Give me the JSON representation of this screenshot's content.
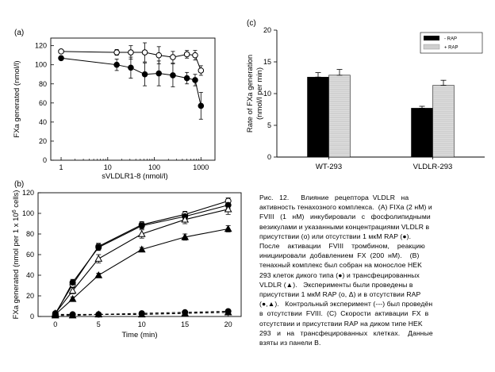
{
  "chart_data": [
    {
      "panel": "(a)",
      "type": "scatter",
      "xlabel": "sVLDLR1-8 (nmol/l)",
      "ylabel": "FXa generated (nmol/l)",
      "xscale": "log",
      "xlim": [
        0.6,
        2000
      ],
      "ylim": [
        0,
        128
      ],
      "yticks": [
        0,
        20,
        40,
        60,
        80,
        100,
        120
      ],
      "xticks": [
        {
          "value": 1,
          "label": "1"
        },
        {
          "value": 10,
          "label": "10"
        },
        {
          "value": 100,
          "label": "100"
        },
        {
          "value": 1000,
          "label": "1000"
        }
      ],
      "series": [
        {
          "marker": "open-circle",
          "points": [
            [
              1,
              114,
              0
            ],
            [
              15.6,
              113,
              3
            ],
            [
              31.3,
              113,
              7
            ],
            [
              62.5,
              113,
              10
            ],
            [
              125,
              110,
              9
            ],
            [
              250,
              108,
              6
            ],
            [
              500,
              111,
              4
            ],
            [
              750,
              110,
              5
            ],
            [
              1000,
              94,
              5
            ]
          ]
        },
        {
          "marker": "filled-circle",
          "points": [
            [
              1,
              107,
              2
            ],
            [
              15.6,
              100,
              6
            ],
            [
              31.3,
              97,
              11
            ],
            [
              62.5,
              90,
              12
            ],
            [
              125,
              91,
              13
            ],
            [
              250,
              89,
              12
            ],
            [
              500,
              86,
              6
            ],
            [
              750,
              84,
              6
            ],
            [
              1000,
              57,
              14
            ]
          ]
        }
      ]
    },
    {
      "panel": "(b)",
      "type": "line",
      "xlabel": "Time (min)",
      "ylabel_parts": [
        "FXa generated (nmol per 1 x 10",
        "6",
        " cells)"
      ],
      "xlim": [
        -2,
        21.5
      ],
      "ylim": [
        0,
        120
      ],
      "xticks": [
        0,
        5,
        10,
        15,
        20
      ],
      "yticks": [
        0,
        20,
        40,
        60,
        80,
        100,
        120
      ],
      "series": [
        {
          "marker": "open-circle",
          "dashed": false,
          "points": [
            [
              0,
              3,
              1
            ],
            [
              2,
              31,
              3
            ],
            [
              5,
              68,
              3
            ],
            [
              10,
              89,
              3
            ],
            [
              15,
              99,
              3
            ],
            [
              20,
              112,
              3
            ]
          ]
        },
        {
          "marker": "filled-circle",
          "dashed": false,
          "points": [
            [
              0,
              2,
              1
            ],
            [
              2,
              33,
              3
            ],
            [
              5,
              67,
              3
            ],
            [
              10,
              88,
              3
            ],
            [
              15,
              97,
              3
            ],
            [
              20,
              108,
              3
            ]
          ]
        },
        {
          "marker": "open-triangle",
          "dashed": false,
          "points": [
            [
              0,
              3,
              1
            ],
            [
              2,
              25,
              3
            ],
            [
              5,
              56,
              4
            ],
            [
              10,
              80,
              4
            ],
            [
              15,
              94,
              4
            ],
            [
              20,
              104,
              5
            ]
          ]
        },
        {
          "marker": "filled-triangle",
          "dashed": false,
          "points": [
            [
              0,
              2,
              1
            ],
            [
              2,
              17,
              2
            ],
            [
              5,
              40,
              2
            ],
            [
              10,
              65,
              2
            ],
            [
              15,
              77,
              3
            ],
            [
              20,
              85,
              3
            ]
          ]
        },
        {
          "marker": "filled-circle",
          "dashed": true,
          "points": [
            [
              0,
              2,
              1
            ],
            [
              2,
              2,
              1
            ],
            [
              5,
              2,
              1
            ],
            [
              10,
              3,
              1
            ],
            [
              15,
              4,
              1
            ],
            [
              20,
              5,
              1
            ]
          ]
        },
        {
          "marker": "filled-triangle",
          "dashed": true,
          "points": [
            [
              0,
              1,
              1
            ],
            [
              2,
              1,
              1
            ],
            [
              5,
              2,
              1
            ],
            [
              10,
              2,
              1
            ],
            [
              15,
              3,
              1
            ],
            [
              20,
              4,
              1
            ]
          ]
        }
      ]
    },
    {
      "panel": "(c)",
      "type": "bar",
      "ylabel_lines": [
        "Rate of FXa generation",
        "(nmol/l per min)"
      ],
      "ylim": [
        0,
        20
      ],
      "yticks": [
        0,
        5,
        10,
        15,
        20
      ],
      "categories": [
        "WT-293",
        "VLDLR-293"
      ],
      "series": [
        {
          "name": "- RAP",
          "color": "#000000",
          "values": [
            12.6,
            7.7
          ],
          "errors": [
            0.7,
            0.3
          ]
        },
        {
          "name": "+ RAP",
          "color": "#cfcfcf",
          "values": [
            12.9,
            11.3
          ],
          "errors": [
            0.9,
            0.8
          ]
        }
      ]
    }
  ],
  "caption": {
    "lines": [
      "Рис.   12.      Влияние   рецептора  VLDLR   на",
      "активность тенахозного комплекса.  (A) FIXa (2 нМ) и",
      "FVIII   (1   нМ)   инкубировали   с   фосфолипидными",
      "везикулами и указанными концентрациями VLDLR в",
      "присутствии (o) или отсутствии 1 мкМ RAP (●).",
      "После    активации    FVIII    тромбином,    реакцию",
      "инициировали  добавлением  FX  (200  нМ).    (B)",
      "тенахный комплекс был собран на монослое HEK",
      "293 клеток дикого типа (●) и трансфецированных",
      "VLDLR (▲).   Эксперименты были проведены в",
      "присутствии 1 мкМ RAP (o, Δ) и в отсутствии RAP",
      "(●,▲).   Контрольный эксперимент (---) был проведён",
      "в  отсутствии  FVIII.  (C)  Скорости  активации  FX  в",
      "отсутствии и присутствии RAP на диком типе HEK",
      "293   и   на   трансфецированных   клетках.    Данные",
      "взяты из панели B."
    ]
  }
}
